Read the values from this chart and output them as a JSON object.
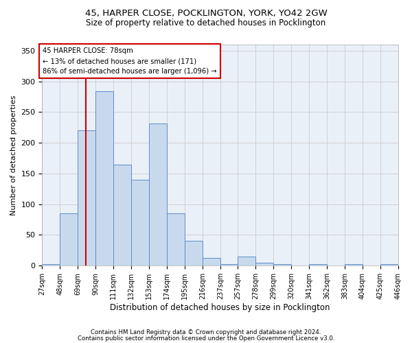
{
  "title1": "45, HARPER CLOSE, POCKLINGTON, YORK, YO42 2GW",
  "title2": "Size of property relative to detached houses in Pocklington",
  "xlabel": "Distribution of detached houses by size in Pocklington",
  "ylabel": "Number of detached properties",
  "footer1": "Contains HM Land Registry data © Crown copyright and database right 2024.",
  "footer2": "Contains public sector information licensed under the Open Government Licence v3.0.",
  "annotation_title": "45 HARPER CLOSE: 78sqm",
  "annotation_line1": "← 13% of detached houses are smaller (171)",
  "annotation_line2": "86% of semi-detached houses are larger (1,096) →",
  "property_size": 78,
  "bar_color": "#c9d9ed",
  "bar_edge_color": "#5b8dc8",
  "vline_color": "#cc0000",
  "annotation_box_color": "#cc0000",
  "grid_color": "#d0d0d0",
  "background_color": "#eaf0f8",
  "bins": [
    27,
    48,
    69,
    90,
    111,
    132,
    153,
    174,
    195,
    216,
    237,
    257,
    278,
    299,
    320,
    341,
    362,
    383,
    404,
    425,
    446
  ],
  "counts": [
    2,
    85,
    220,
    284,
    165,
    140,
    232,
    85,
    40,
    13,
    2,
    15,
    5,
    2,
    0,
    2,
    0,
    2,
    0,
    2
  ],
  "ylim": [
    0,
    360
  ],
  "yticks": [
    0,
    50,
    100,
    150,
    200,
    250,
    300,
    350
  ],
  "figsize": [
    6.0,
    5.0
  ],
  "dpi": 100
}
